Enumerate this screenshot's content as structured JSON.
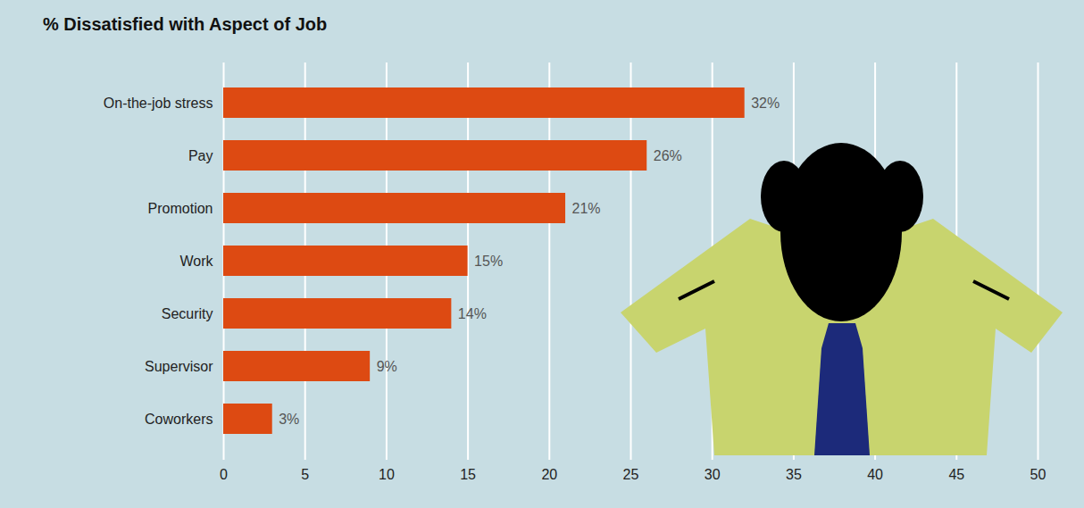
{
  "chart_data": {
    "type": "bar",
    "orientation": "horizontal",
    "title": "% Dissatisfied with Aspect of Job",
    "categories": [
      "On-the-job stress",
      "Pay",
      "Promotion",
      "Work",
      "Security",
      "Supervisor",
      "Coworkers"
    ],
    "values": [
      32,
      26,
      21,
      15,
      14,
      9,
      3
    ],
    "value_labels": [
      "32%",
      "26%",
      "21%",
      "15%",
      "14%",
      "9%",
      "3%"
    ],
    "data_labels": true,
    "color": "#dd4a12",
    "xlim": [
      0,
      50
    ],
    "xticks": [
      0,
      5,
      10,
      15,
      20,
      25,
      30,
      35,
      40,
      45,
      50
    ],
    "grid": true
  }
}
